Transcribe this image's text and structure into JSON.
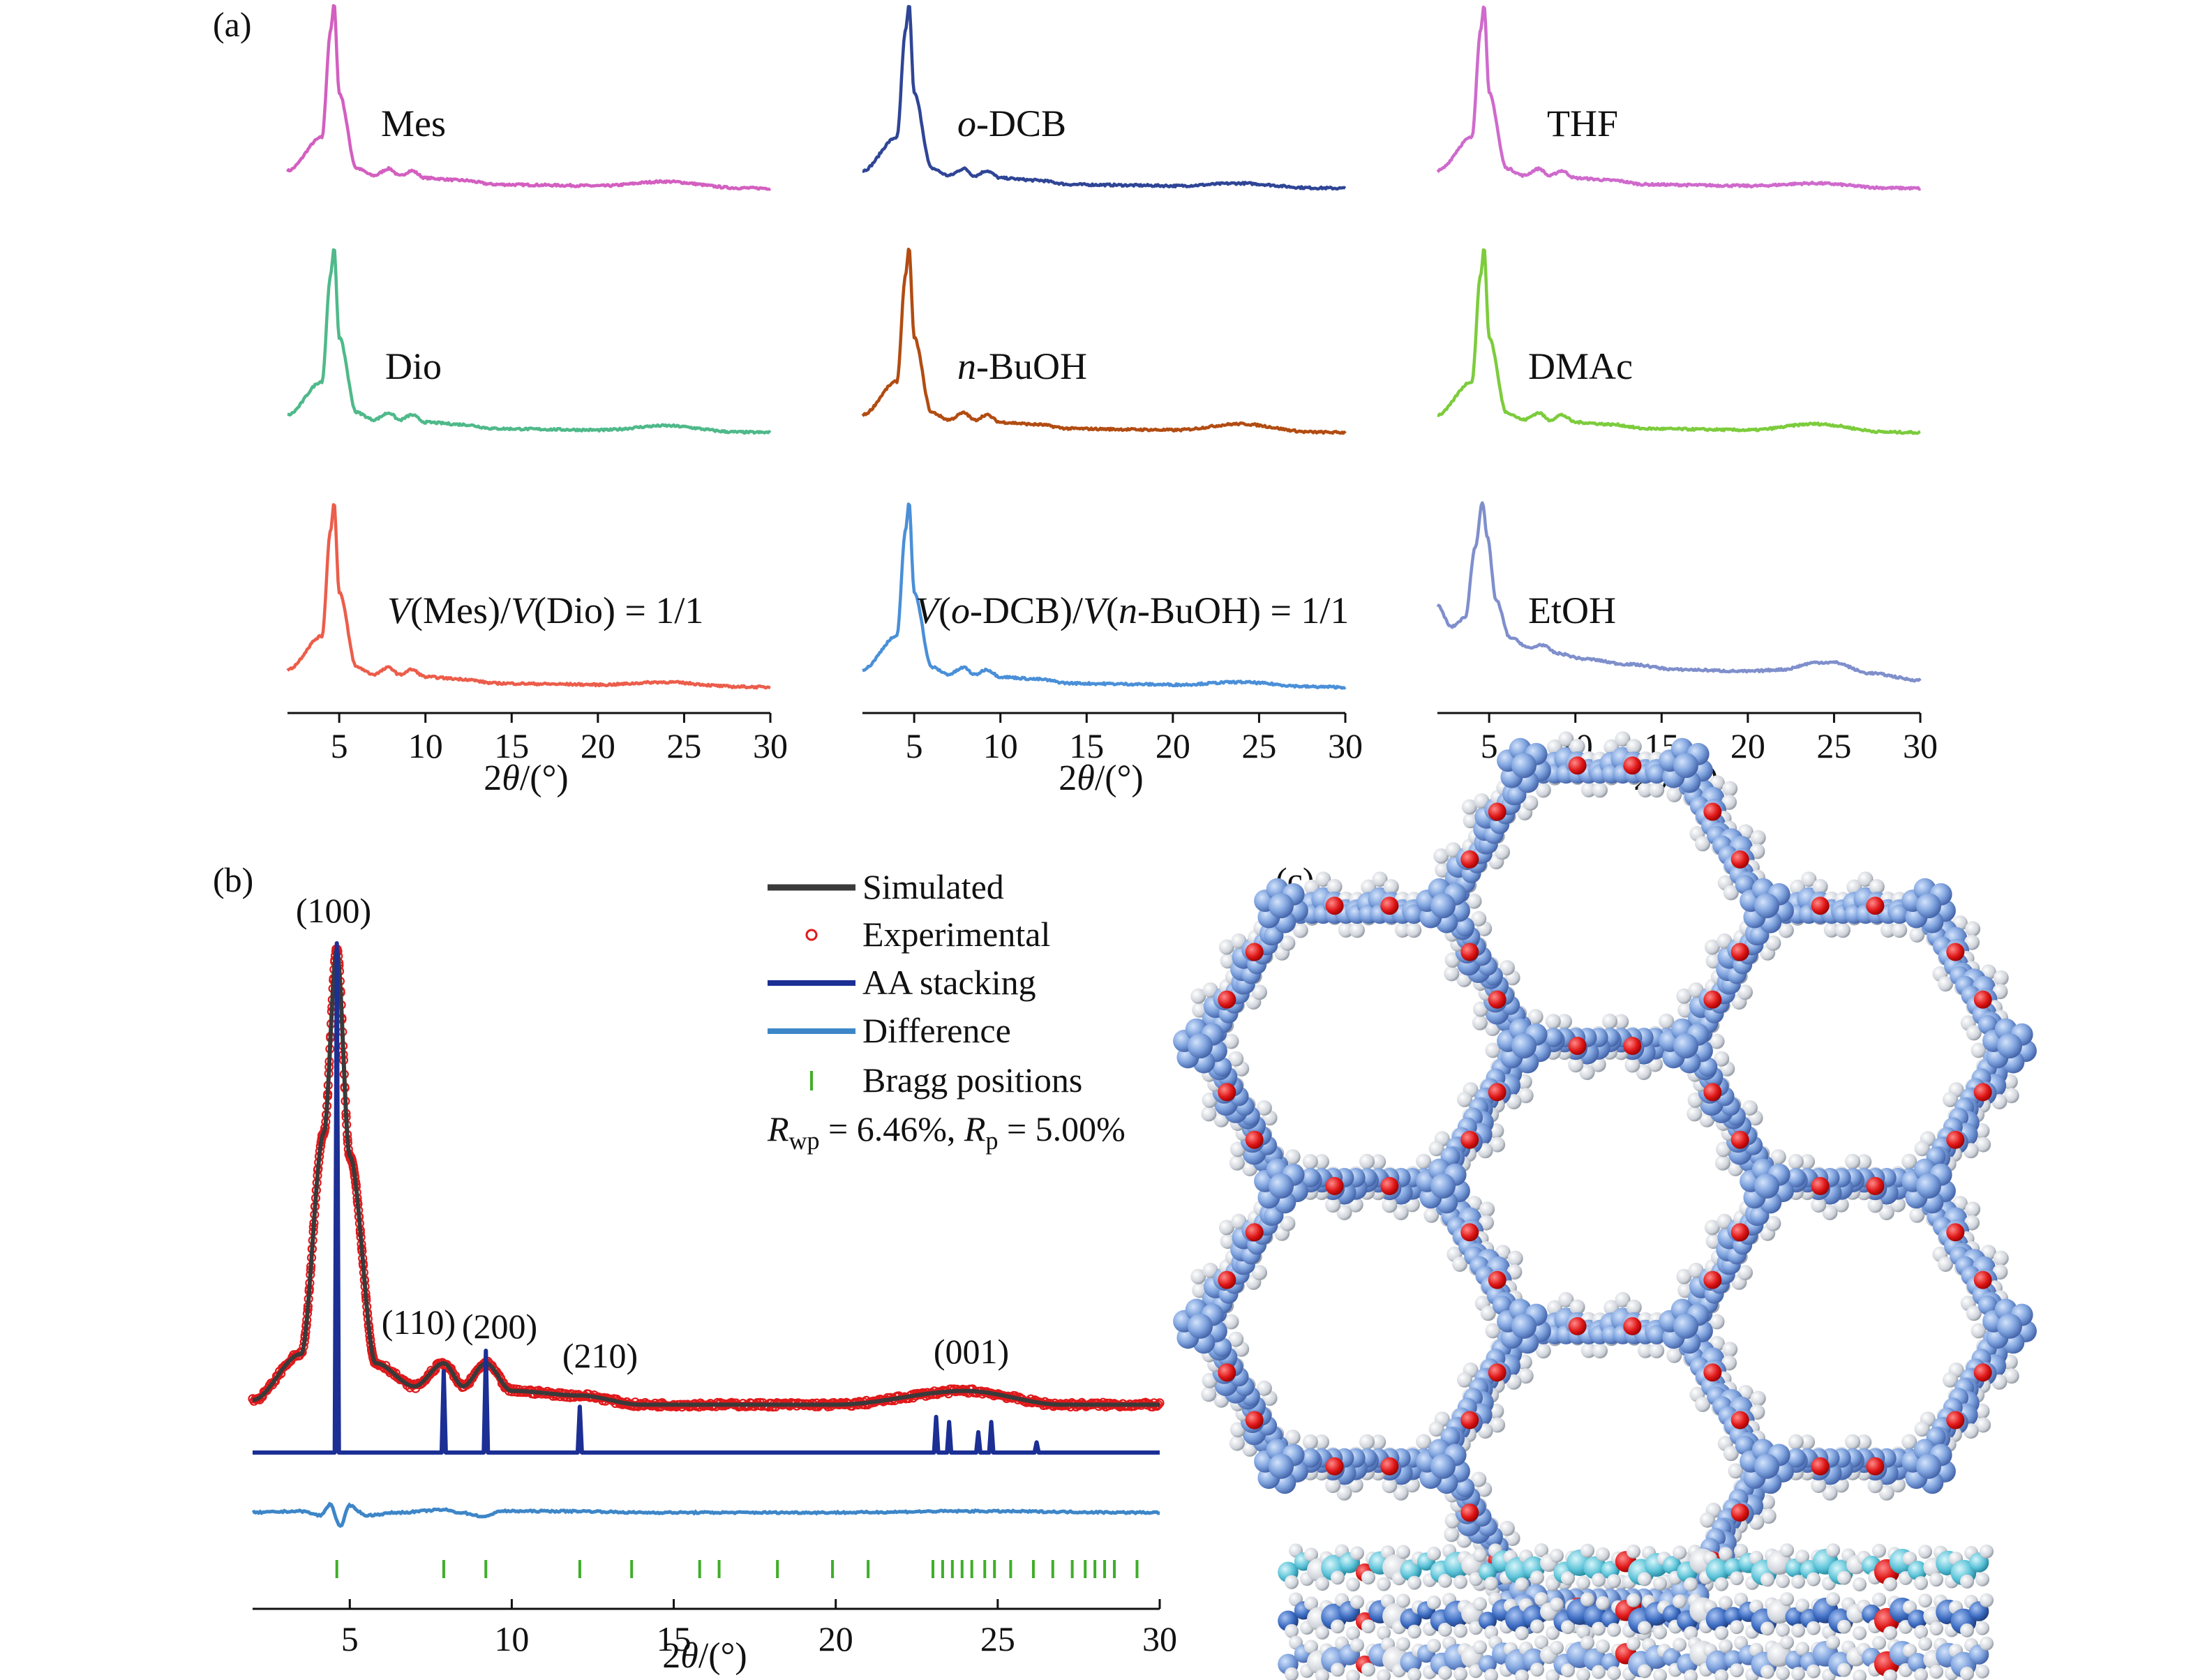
{
  "panel_labels": {
    "a": "(a)",
    "b": "(b)",
    "c": "(c)"
  },
  "colors": {
    "Mes": "#d35fc0",
    "o-DCB": "#2f4596",
    "THF": "#cf6acc",
    "Dio": "#4fb98a",
    "n-BuOH": "#b24c12",
    "DMAc": "#7ccc3c",
    "Mes/Dio": "#ec5d4b",
    "o-DCB/n-BuOH": "#4a8fd8",
    "EtOH": "#7f8fcc",
    "simulated": "#3a3a3a",
    "experimental": "#e0191b",
    "aa_stacking": "#1b2f94",
    "difference": "#3d86c8",
    "bragg": "#3fae2a"
  },
  "chart_data": [
    {
      "type": "line",
      "panel": "(a)",
      "xlabel": "2θ/(°)",
      "xlim": [
        2,
        30
      ],
      "xticks": [
        "5",
        "10",
        "15",
        "20",
        "25",
        "30"
      ],
      "series": [
        {
          "id": "Mes",
          "name": "Mes",
          "x": [
            2,
            4,
            4.5,
            4.7,
            5,
            6,
            7,
            7.9,
            8.5,
            9.2,
            10,
            12.2,
            14,
            20,
            24,
            28,
            30
          ],
          "values": [
            0.06,
            0.25,
            0.85,
            1,
            0.5,
            0.08,
            0.04,
            0.08,
            0.04,
            0.07,
            0.03,
            0.02,
            0,
            0,
            0.03,
            0,
            0
          ]
        },
        {
          "id": "o-DCB",
          "name": "o-DCB",
          "x": [
            2,
            4,
            4.5,
            4.7,
            5,
            6,
            7,
            7.9,
            8.5,
            9.2,
            10,
            12.2,
            14,
            20,
            24,
            28,
            30
          ],
          "values": [
            0.06,
            0.25,
            0.85,
            1,
            0.5,
            0.08,
            0.04,
            0.08,
            0.04,
            0.07,
            0.03,
            0.02,
            0,
            0,
            0.02,
            0,
            0
          ]
        },
        {
          "id": "THF",
          "name": "THF",
          "x": [
            2,
            4,
            4.5,
            4.7,
            5,
            6,
            7,
            7.9,
            8.5,
            9.2,
            10,
            12.2,
            14,
            20,
            24,
            28,
            30
          ],
          "values": [
            0.06,
            0.25,
            0.85,
            1,
            0.5,
            0.08,
            0.04,
            0.08,
            0.04,
            0.07,
            0.03,
            0.02,
            0,
            0,
            0.02,
            0,
            0
          ]
        },
        {
          "id": "Dio",
          "name": "Dio",
          "x": [
            2,
            4,
            4.5,
            4.7,
            5,
            6,
            7,
            7.9,
            8.5,
            9.2,
            10,
            12.2,
            14,
            20,
            24,
            28,
            30
          ],
          "values": [
            0.06,
            0.25,
            0.85,
            1,
            0.5,
            0.08,
            0.04,
            0.08,
            0.04,
            0.07,
            0.03,
            0.02,
            0,
            0,
            0.03,
            0,
            0
          ]
        },
        {
          "id": "n-BuOH",
          "name": "n-BuOH",
          "x": [
            2,
            4,
            4.5,
            4.7,
            5,
            6,
            7,
            7.9,
            8.5,
            9.2,
            10,
            12.2,
            14,
            20,
            24,
            28,
            30
          ],
          "values": [
            0.06,
            0.25,
            0.85,
            1,
            0.5,
            0.08,
            0.04,
            0.08,
            0.04,
            0.07,
            0.03,
            0.02,
            0,
            0,
            0.04,
            0,
            0
          ]
        },
        {
          "id": "DMAc",
          "name": "DMAc",
          "x": [
            2,
            4,
            4.5,
            4.7,
            5,
            6,
            7,
            7.9,
            8.5,
            9.2,
            10,
            12.2,
            14,
            20,
            24,
            28,
            30
          ],
          "values": [
            0.06,
            0.25,
            0.85,
            1,
            0.5,
            0.08,
            0.04,
            0.08,
            0.04,
            0.07,
            0.03,
            0.02,
            0,
            0,
            0.04,
            0,
            0
          ]
        },
        {
          "id": "Mes/Dio",
          "name": "V(Mes)/V(Dio) = 1/1",
          "x": [
            2,
            4,
            4.5,
            4.7,
            5,
            6,
            7,
            7.9,
            8.5,
            9.2,
            10,
            12.2,
            14,
            20,
            24,
            28,
            30
          ],
          "values": [
            0.06,
            0.25,
            0.85,
            1,
            0.5,
            0.08,
            0.04,
            0.08,
            0.04,
            0.07,
            0.03,
            0.02,
            0,
            0,
            0.02,
            0,
            0
          ]
        },
        {
          "id": "o-DCB/n-BuOH",
          "name": "V(o-DCB)/V(n-BuOH) = 1/1",
          "x": [
            2,
            4,
            4.5,
            4.7,
            5,
            6,
            7,
            7.9,
            8.5,
            9.2,
            10,
            12.2,
            14,
            20,
            24,
            28,
            30
          ],
          "values": [
            0.06,
            0.25,
            0.85,
            1,
            0.5,
            0.08,
            0.04,
            0.08,
            0.04,
            0.07,
            0.03,
            0.02,
            0,
            0,
            0.02,
            0,
            0
          ]
        },
        {
          "id": "EtOH",
          "name": "EtOH",
          "x": [
            2,
            2.8,
            3.6,
            4.2,
            4.6,
            4.9,
            5.4,
            6.2,
            7.4,
            8,
            9,
            10.5,
            13,
            16,
            20,
            22,
            24,
            25,
            27,
            30
          ],
          "values": [
            0.42,
            0.3,
            0.35,
            0.75,
            1,
            0.8,
            0.45,
            0.24,
            0.18,
            0.2,
            0.15,
            0.12,
            0.09,
            0.06,
            0.05,
            0.06,
            0.1,
            0.1,
            0.04,
            0
          ]
        }
      ]
    },
    {
      "type": "line",
      "panel": "(b)",
      "xlabel": "2θ/(°)",
      "xlim": [
        2,
        30
      ],
      "xticks": [
        "5",
        "10",
        "15",
        "20",
        "25",
        "30"
      ],
      "series": [
        {
          "name": "Simulated",
          "x": [
            2,
            3.5,
            4.2,
            4.6,
            5,
            5.8,
            7,
            7.9,
            8.5,
            9.2,
            10,
            12.1,
            14,
            20,
            24,
            27,
            30
          ],
          "values": [
            0.02,
            0.12,
            0.6,
            1,
            0.55,
            0.1,
            0.05,
            0.1,
            0.05,
            0.1,
            0.04,
            0.03,
            0.01,
            0.01,
            0.04,
            0.01,
            0.01
          ]
        },
        {
          "name": "Experimental",
          "x": [
            2,
            3.5,
            4.2,
            4.6,
            5,
            5.8,
            7,
            7.9,
            8.5,
            9.2,
            10,
            12.1,
            14,
            20,
            24,
            27,
            30
          ],
          "values": [
            0.02,
            0.12,
            0.6,
            1,
            0.55,
            0.1,
            0.05,
            0.1,
            0.05,
            0.1,
            0.04,
            0.03,
            0.01,
            0.01,
            0.04,
            0.01,
            0.01
          ]
        },
        {
          "name": "AA stacking",
          "peaks": [
            [
              4.6,
              1
            ],
            [
              7.9,
              0.16
            ],
            [
              9.2,
              0.2
            ],
            [
              12.1,
              0.09
            ],
            [
              23.1,
              0.07
            ],
            [
              23.5,
              0.06
            ],
            [
              24.4,
              0.04
            ],
            [
              24.8,
              0.06
            ],
            [
              26.2,
              0.02
            ]
          ]
        },
        {
          "name": "Difference",
          "x": [
            2,
            3.5,
            4.1,
            4.4,
            4.7,
            5,
            5.5,
            6.5,
            7.9,
            8.4,
            9.2,
            9.6,
            12,
            14,
            20,
            24,
            30
          ],
          "values": [
            0,
            0.01,
            -0.02,
            0.06,
            -0.1,
            0.05,
            -0.02,
            0,
            0.02,
            0,
            -0.03,
            0.01,
            0.01,
            0,
            0,
            0.01,
            0
          ]
        },
        {
          "name": "Bragg positions",
          "positions": [
            4.6,
            7.9,
            9.2,
            12.1,
            13.7,
            15.8,
            16.4,
            18.2,
            19.9,
            21.0,
            23.0,
            23.3,
            23.6,
            23.9,
            24.2,
            24.6,
            24.9,
            25.4,
            26.1,
            26.7,
            27.3,
            27.7,
            28.0,
            28.3,
            28.6,
            29.3
          ]
        }
      ],
      "annotations": [
        {
          "text": "(100)",
          "x": 4.6
        },
        {
          "text": "(110)",
          "x": 7.9
        },
        {
          "text": "(200)",
          "x": 9.2
        },
        {
          "text": "(210)",
          "x": 12.1
        },
        {
          "text": "(001)",
          "x": 23.8
        }
      ],
      "legend": {
        "placement": "top-right",
        "items": [
          "Simulated",
          "Experimental",
          "AA stacking",
          "Difference",
          "Bragg positions"
        ],
        "stats_parts": [
          "R",
          "wp",
          " = 6.46%, ",
          "R",
          "p",
          " = 5.00%"
        ]
      }
    }
  ]
}
